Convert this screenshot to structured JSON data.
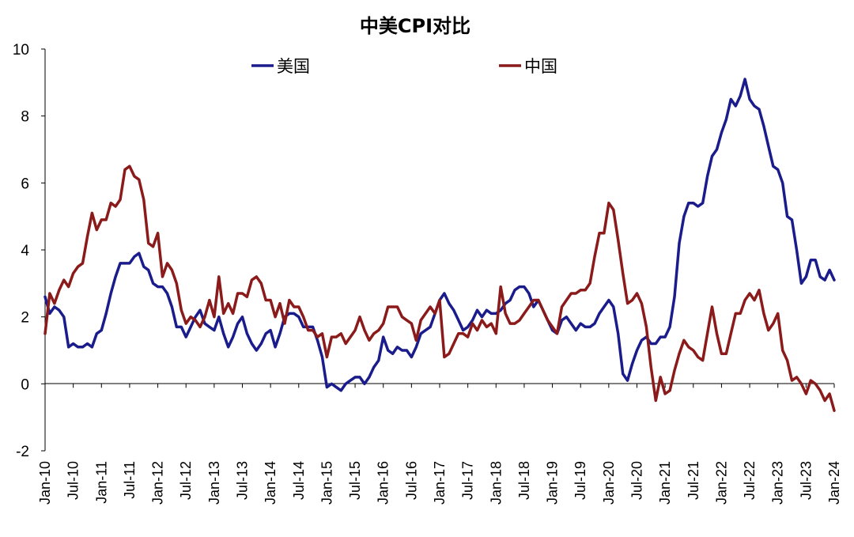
{
  "chart_data": {
    "type": "line",
    "title": "中美CPI对比",
    "xlabel": "",
    "ylabel": "",
    "ylim": [
      -2,
      10
    ],
    "yticks": [
      -2,
      0,
      2,
      4,
      6,
      8,
      10
    ],
    "negative_tick_color": "#e0262b",
    "xlim": [
      "2010-01",
      "2024-01"
    ],
    "xticks": [
      "Jan-10",
      "Jul-10",
      "Jan-11",
      "Jul-11",
      "Jan-12",
      "Jul-12",
      "Jan-13",
      "Jul-13",
      "Jan-14",
      "Jul-14",
      "Jan-15",
      "Jul-15",
      "Jan-16",
      "Jul-16",
      "Jan-17",
      "Jul-17",
      "Jan-18",
      "Jul-18",
      "Jan-19",
      "Jul-19",
      "Jan-20",
      "Jul-20",
      "Jan-21",
      "Jul-21",
      "Jan-22",
      "Jul-22",
      "Jan-23",
      "Jul-23",
      "Jan-24"
    ],
    "grid": false,
    "legend_position": "top",
    "series": [
      {
        "name": "美国",
        "color": "#1b1c8c",
        "x": [
          "2010-01",
          "2010-02",
          "2010-03",
          "2010-04",
          "2010-05",
          "2010-06",
          "2010-07",
          "2010-08",
          "2010-09",
          "2010-10",
          "2010-11",
          "2010-12",
          "2011-01",
          "2011-02",
          "2011-03",
          "2011-04",
          "2011-05",
          "2011-06",
          "2011-07",
          "2011-08",
          "2011-09",
          "2011-10",
          "2011-11",
          "2011-12",
          "2012-01",
          "2012-02",
          "2012-03",
          "2012-04",
          "2012-05",
          "2012-06",
          "2012-07",
          "2012-08",
          "2012-09",
          "2012-10",
          "2012-11",
          "2012-12",
          "2013-01",
          "2013-02",
          "2013-03",
          "2013-04",
          "2013-05",
          "2013-06",
          "2013-07",
          "2013-08",
          "2013-09",
          "2013-10",
          "2013-11",
          "2013-12",
          "2014-01",
          "2014-02",
          "2014-03",
          "2014-04",
          "2014-05",
          "2014-06",
          "2014-07",
          "2014-08",
          "2014-09",
          "2014-10",
          "2014-11",
          "2014-12",
          "2015-01",
          "2015-02",
          "2015-03",
          "2015-04",
          "2015-05",
          "2015-06",
          "2015-07",
          "2015-08",
          "2015-09",
          "2015-10",
          "2015-11",
          "2015-12",
          "2016-01",
          "2016-02",
          "2016-03",
          "2016-04",
          "2016-05",
          "2016-06",
          "2016-07",
          "2016-08",
          "2016-09",
          "2016-10",
          "2016-11",
          "2016-12",
          "2017-01",
          "2017-02",
          "2017-03",
          "2017-04",
          "2017-05",
          "2017-06",
          "2017-07",
          "2017-08",
          "2017-09",
          "2017-10",
          "2017-11",
          "2017-12",
          "2018-01",
          "2018-02",
          "2018-03",
          "2018-04",
          "2018-05",
          "2018-06",
          "2018-07",
          "2018-08",
          "2018-09",
          "2018-10",
          "2018-11",
          "2018-12",
          "2019-01",
          "2019-02",
          "2019-03",
          "2019-04",
          "2019-05",
          "2019-06",
          "2019-07",
          "2019-08",
          "2019-09",
          "2019-10",
          "2019-11",
          "2019-12",
          "2020-01",
          "2020-02",
          "2020-03",
          "2020-04",
          "2020-05",
          "2020-06",
          "2020-07",
          "2020-08",
          "2020-09",
          "2020-10",
          "2020-11",
          "2020-12",
          "2021-01",
          "2021-02",
          "2021-03",
          "2021-04",
          "2021-05",
          "2021-06",
          "2021-07",
          "2021-08",
          "2021-09",
          "2021-10",
          "2021-11",
          "2021-12",
          "2022-01",
          "2022-02",
          "2022-03",
          "2022-04",
          "2022-05",
          "2022-06",
          "2022-07",
          "2022-08",
          "2022-09",
          "2022-10",
          "2022-11",
          "2022-12",
          "2023-01",
          "2023-02",
          "2023-03",
          "2023-04",
          "2023-05",
          "2023-06",
          "2023-07",
          "2023-08",
          "2023-09",
          "2023-10",
          "2023-11",
          "2023-12",
          "2024-01"
        ],
        "y": [
          2.6,
          2.1,
          2.3,
          2.2,
          2.0,
          1.1,
          1.2,
          1.1,
          1.1,
          1.2,
          1.1,
          1.5,
          1.6,
          2.1,
          2.7,
          3.2,
          3.6,
          3.6,
          3.6,
          3.8,
          3.9,
          3.5,
          3.4,
          3.0,
          2.9,
          2.9,
          2.7,
          2.3,
          1.7,
          1.7,
          1.4,
          1.7,
          2.0,
          2.2,
          1.8,
          1.7,
          1.6,
          2.0,
          1.5,
          1.1,
          1.4,
          1.8,
          2.0,
          1.5,
          1.2,
          1.0,
          1.2,
          1.5,
          1.6,
          1.1,
          1.5,
          2.0,
          2.1,
          2.1,
          2.0,
          1.7,
          1.7,
          1.7,
          1.3,
          0.8,
          -0.1,
          0.0,
          -0.1,
          -0.2,
          0.0,
          0.1,
          0.2,
          0.2,
          0.0,
          0.2,
          0.5,
          0.7,
          1.4,
          1.0,
          0.9,
          1.1,
          1.0,
          1.0,
          0.8,
          1.1,
          1.5,
          1.6,
          1.7,
          2.1,
          2.5,
          2.7,
          2.4,
          2.2,
          1.9,
          1.6,
          1.7,
          1.9,
          2.2,
          2.0,
          2.2,
          2.1,
          2.1,
          2.2,
          2.4,
          2.5,
          2.8,
          2.9,
          2.9,
          2.7,
          2.3,
          2.5,
          2.2,
          1.9,
          1.6,
          1.5,
          1.9,
          2.0,
          1.8,
          1.6,
          1.8,
          1.7,
          1.7,
          1.8,
          2.1,
          2.3,
          2.5,
          2.3,
          1.5,
          0.3,
          0.1,
          0.6,
          1.0,
          1.3,
          1.4,
          1.2,
          1.2,
          1.4,
          1.4,
          1.7,
          2.6,
          4.2,
          5.0,
          5.4,
          5.4,
          5.3,
          5.4,
          6.2,
          6.8,
          7.0,
          7.5,
          7.9,
          8.5,
          8.3,
          8.6,
          9.1,
          8.5,
          8.3,
          8.2,
          7.7,
          7.1,
          6.5,
          6.4,
          6.0,
          5.0,
          4.9,
          4.0,
          3.0,
          3.2,
          3.7,
          3.7,
          3.2,
          3.1,
          3.4,
          3.1
        ]
      },
      {
        "name": "中国",
        "color": "#8b1a1a",
        "x": [
          "2010-01",
          "2010-02",
          "2010-03",
          "2010-04",
          "2010-05",
          "2010-06",
          "2010-07",
          "2010-08",
          "2010-09",
          "2010-10",
          "2010-11",
          "2010-12",
          "2011-01",
          "2011-02",
          "2011-03",
          "2011-04",
          "2011-05",
          "2011-06",
          "2011-07",
          "2011-08",
          "2011-09",
          "2011-10",
          "2011-11",
          "2011-12",
          "2012-01",
          "2012-02",
          "2012-03",
          "2012-04",
          "2012-05",
          "2012-06",
          "2012-07",
          "2012-08",
          "2012-09",
          "2012-10",
          "2012-11",
          "2012-12",
          "2013-01",
          "2013-02",
          "2013-03",
          "2013-04",
          "2013-05",
          "2013-06",
          "2013-07",
          "2013-08",
          "2013-09",
          "2013-10",
          "2013-11",
          "2013-12",
          "2014-01",
          "2014-02",
          "2014-03",
          "2014-04",
          "2014-05",
          "2014-06",
          "2014-07",
          "2014-08",
          "2014-09",
          "2014-10",
          "2014-11",
          "2014-12",
          "2015-01",
          "2015-02",
          "2015-03",
          "2015-04",
          "2015-05",
          "2015-06",
          "2015-07",
          "2015-08",
          "2015-09",
          "2015-10",
          "2015-11",
          "2015-12",
          "2016-01",
          "2016-02",
          "2016-03",
          "2016-04",
          "2016-05",
          "2016-06",
          "2016-07",
          "2016-08",
          "2016-09",
          "2016-10",
          "2016-11",
          "2016-12",
          "2017-01",
          "2017-02",
          "2017-03",
          "2017-04",
          "2017-05",
          "2017-06",
          "2017-07",
          "2017-08",
          "2017-09",
          "2017-10",
          "2017-11",
          "2017-12",
          "2018-01",
          "2018-02",
          "2018-03",
          "2018-04",
          "2018-05",
          "2018-06",
          "2018-07",
          "2018-08",
          "2018-09",
          "2018-10",
          "2018-11",
          "2018-12",
          "2019-01",
          "2019-02",
          "2019-03",
          "2019-04",
          "2019-05",
          "2019-06",
          "2019-07",
          "2019-08",
          "2019-09",
          "2019-10",
          "2019-11",
          "2019-12",
          "2020-01",
          "2020-02",
          "2020-03",
          "2020-04",
          "2020-05",
          "2020-06",
          "2020-07",
          "2020-08",
          "2020-09",
          "2020-10",
          "2020-11",
          "2020-12",
          "2021-01",
          "2021-02",
          "2021-03",
          "2021-04",
          "2021-05",
          "2021-06",
          "2021-07",
          "2021-08",
          "2021-09",
          "2021-10",
          "2021-11",
          "2021-12",
          "2022-01",
          "2022-02",
          "2022-03",
          "2022-04",
          "2022-05",
          "2022-06",
          "2022-07",
          "2022-08",
          "2022-09",
          "2022-10",
          "2022-11",
          "2022-12",
          "2023-01",
          "2023-02",
          "2023-03",
          "2023-04",
          "2023-05",
          "2023-06",
          "2023-07",
          "2023-08",
          "2023-09",
          "2023-10",
          "2023-11",
          "2023-12",
          "2024-01"
        ],
        "y": [
          1.5,
          2.7,
          2.4,
          2.8,
          3.1,
          2.9,
          3.3,
          3.5,
          3.6,
          4.4,
          5.1,
          4.6,
          4.9,
          4.9,
          5.4,
          5.3,
          5.5,
          6.4,
          6.5,
          6.2,
          6.1,
          5.5,
          4.2,
          4.1,
          4.5,
          3.2,
          3.6,
          3.4,
          3.0,
          2.2,
          1.8,
          2.0,
          1.9,
          1.7,
          2.0,
          2.5,
          2.0,
          3.2,
          2.1,
          2.4,
          2.1,
          2.7,
          2.7,
          2.6,
          3.1,
          3.2,
          3.0,
          2.5,
          2.5,
          2.0,
          2.4,
          1.8,
          2.5,
          2.3,
          2.3,
          2.0,
          1.6,
          1.6,
          1.4,
          1.5,
          0.8,
          1.4,
          1.4,
          1.5,
          1.2,
          1.4,
          1.6,
          2.0,
          1.6,
          1.3,
          1.5,
          1.6,
          1.8,
          2.3,
          2.3,
          2.3,
          2.0,
          1.9,
          1.8,
          1.3,
          1.9,
          2.1,
          2.3,
          2.1,
          2.5,
          0.8,
          0.9,
          1.2,
          1.5,
          1.5,
          1.4,
          1.8,
          1.6,
          1.9,
          1.7,
          1.8,
          1.5,
          2.9,
          2.1,
          1.8,
          1.8,
          1.9,
          2.1,
          2.3,
          2.5,
          2.5,
          2.2,
          1.9,
          1.7,
          1.5,
          2.3,
          2.5,
          2.7,
          2.7,
          2.8,
          2.8,
          3.0,
          3.8,
          4.5,
          4.5,
          5.4,
          5.2,
          4.3,
          3.3,
          2.4,
          2.5,
          2.7,
          2.4,
          1.7,
          0.5,
          -0.5,
          0.2,
          -0.3,
          -0.2,
          0.4,
          0.9,
          1.3,
          1.1,
          1.0,
          0.8,
          0.7,
          1.5,
          2.3,
          1.5,
          0.9,
          0.9,
          1.5,
          2.1,
          2.1,
          2.5,
          2.7,
          2.5,
          2.8,
          2.1,
          1.6,
          1.8,
          2.1,
          1.0,
          0.7,
          0.1,
          0.2,
          0.0,
          -0.3,
          0.1,
          0.0,
          -0.2,
          -0.5,
          -0.3,
          -0.8
        ]
      }
    ]
  }
}
